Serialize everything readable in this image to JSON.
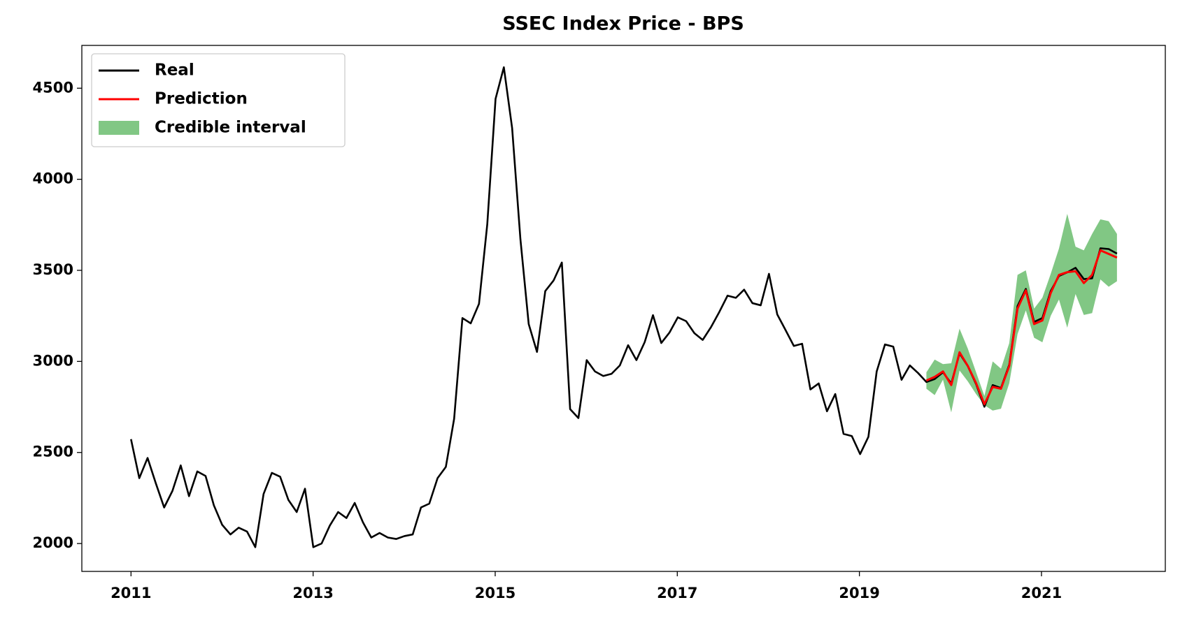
{
  "chart_data": {
    "type": "line",
    "title": "SSEC Index Price - BPS",
    "x": [
      2011,
      2011.091,
      2011.182,
      2011.273,
      2011.364,
      2011.455,
      2011.546,
      2011.637,
      2011.728,
      2011.819,
      2011.91,
      2012.001,
      2012.092,
      2012.183,
      2012.274,
      2012.365,
      2012.456,
      2012.547,
      2012.638,
      2012.729,
      2012.82,
      2012.911,
      2013.002,
      2013.093,
      2013.184,
      2013.275,
      2013.366,
      2013.457,
      2013.548,
      2013.639,
      2013.73,
      2013.821,
      2013.912,
      2014.003,
      2014.094,
      2014.185,
      2014.276,
      2014.367,
      2014.458,
      2014.549,
      2014.64,
      2014.731,
      2014.822,
      2014.913,
      2015.004,
      2015.095,
      2015.186,
      2015.277,
      2015.368,
      2015.459,
      2015.55,
      2015.641,
      2015.732,
      2015.823,
      2015.914,
      2016.005,
      2016.096,
      2016.187,
      2016.278,
      2016.369,
      2016.46,
      2016.551,
      2016.642,
      2016.733,
      2016.824,
      2016.915,
      2017.006,
      2017.097,
      2017.188,
      2017.279,
      2017.37,
      2017.461,
      2017.552,
      2017.643,
      2017.734,
      2017.825,
      2017.916,
      2018.007,
      2018.098,
      2018.189,
      2018.28,
      2018.371,
      2018.462,
      2018.553,
      2018.644,
      2018.735,
      2018.826,
      2018.917,
      2019.008,
      2019.099,
      2019.19,
      2019.281,
      2019.372,
      2019.463,
      2019.554,
      2019.645,
      2019.736,
      2019.827,
      2019.918,
      2020.009,
      2020.1,
      2020.191,
      2020.282,
      2020.373,
      2020.464,
      2020.555,
      2020.646,
      2020.737,
      2020.828,
      2020.919,
      2021.01,
      2021.101,
      2021.192,
      2021.283,
      2021.374,
      2021.465,
      2021.556,
      2021.647,
      2021.738,
      2021.829
    ],
    "series": [
      {
        "name": "Real",
        "color": "#000000",
        "values": [
          2573,
          2359,
          2470,
          2330,
          2198,
          2289,
          2429,
          2260,
          2396,
          2371,
          2210,
          2103,
          2050,
          2087,
          2066,
          1980,
          2272,
          2388,
          2367,
          2239,
          2173,
          2301,
          1980,
          2000,
          2099,
          2173,
          2140,
          2223,
          2116,
          2033,
          2058,
          2033,
          2025,
          2041,
          2050,
          2198,
          2219,
          2359,
          2421,
          2685,
          3238,
          3209,
          3316,
          3753,
          4442,
          4615,
          4281,
          3671,
          3205,
          3052,
          3386,
          3444,
          3543,
          2738,
          2689,
          3007,
          2945,
          2920,
          2932,
          2978,
          3089,
          3007,
          3106,
          3254,
          3101,
          3159,
          3242,
          3221,
          3155,
          3118,
          3188,
          3271,
          3361,
          3349,
          3394,
          3320,
          3308,
          3481,
          3258,
          3172,
          3085,
          3097,
          2846,
          2879,
          2726,
          2821,
          2602,
          2590,
          2491,
          2586,
          2945,
          3093,
          3081,
          2899,
          2978,
          2936,
          2887,
          2903,
          2940,
          2879,
          3044,
          2974,
          2875,
          2751,
          2870,
          2854,
          2982,
          3304,
          3398,
          3217,
          3238,
          3386,
          3469,
          3489,
          3514,
          3452,
          3456,
          3621,
          3617,
          3592
        ]
      },
      {
        "name": "Prediction",
        "color": "#ff0000",
        "values": [
          null,
          null,
          null,
          null,
          null,
          null,
          null,
          null,
          null,
          null,
          null,
          null,
          null,
          null,
          null,
          null,
          null,
          null,
          null,
          null,
          null,
          null,
          null,
          null,
          null,
          null,
          null,
          null,
          null,
          null,
          null,
          null,
          null,
          null,
          null,
          null,
          null,
          null,
          null,
          null,
          null,
          null,
          null,
          null,
          null,
          null,
          null,
          null,
          null,
          null,
          null,
          null,
          null,
          null,
          null,
          null,
          null,
          null,
          null,
          null,
          null,
          null,
          null,
          null,
          null,
          null,
          null,
          null,
          null,
          null,
          null,
          null,
          null,
          null,
          null,
          null,
          null,
          null,
          null,
          null,
          null,
          null,
          null,
          null,
          null,
          null,
          null,
          null,
          null,
          null,
          null,
          null,
          null,
          null,
          null,
          null,
          2895,
          2915,
          2945,
          2870,
          3050,
          2975,
          2880,
          2765,
          2860,
          2850,
          2975,
          3290,
          3390,
          3205,
          3225,
          3375,
          3475,
          3490,
          3495,
          3430,
          3475,
          3610,
          3590,
          3570
        ]
      }
    ],
    "interval": {
      "name": "Credible interval",
      "color": "#4caf50",
      "lower": [
        null,
        null,
        null,
        null,
        null,
        null,
        null,
        null,
        null,
        null,
        null,
        null,
        null,
        null,
        null,
        null,
        null,
        null,
        null,
        null,
        null,
        null,
        null,
        null,
        null,
        null,
        null,
        null,
        null,
        null,
        null,
        null,
        null,
        null,
        null,
        null,
        null,
        null,
        null,
        null,
        null,
        null,
        null,
        null,
        null,
        null,
        null,
        null,
        null,
        null,
        null,
        null,
        null,
        null,
        null,
        null,
        null,
        null,
        null,
        null,
        null,
        null,
        null,
        null,
        null,
        null,
        null,
        null,
        null,
        null,
        null,
        null,
        null,
        null,
        null,
        null,
        null,
        null,
        null,
        null,
        null,
        null,
        null,
        null,
        null,
        null,
        null,
        null,
        null,
        null,
        null,
        null,
        null,
        null,
        null,
        null,
        2850,
        2815,
        2900,
        2720,
        2950,
        2890,
        2820,
        2760,
        2730,
        2740,
        2880,
        3150,
        3280,
        3130,
        3105,
        3250,
        3340,
        3185,
        3370,
        3255,
        3265,
        3450,
        3410,
        3440
      ],
      "upper": [
        null,
        null,
        null,
        null,
        null,
        null,
        null,
        null,
        null,
        null,
        null,
        null,
        null,
        null,
        null,
        null,
        null,
        null,
        null,
        null,
        null,
        null,
        null,
        null,
        null,
        null,
        null,
        null,
        null,
        null,
        null,
        null,
        null,
        null,
        null,
        null,
        null,
        null,
        null,
        null,
        null,
        null,
        null,
        null,
        null,
        null,
        null,
        null,
        null,
        null,
        null,
        null,
        null,
        null,
        null,
        null,
        null,
        null,
        null,
        null,
        null,
        null,
        null,
        null,
        null,
        null,
        null,
        null,
        null,
        null,
        null,
        null,
        null,
        null,
        null,
        null,
        null,
        null,
        null,
        null,
        null,
        null,
        null,
        null,
        null,
        null,
        null,
        null,
        null,
        null,
        null,
        null,
        null,
        null,
        null,
        null,
        2940,
        3010,
        2985,
        2990,
        3180,
        3070,
        2940,
        2810,
        3000,
        2960,
        3100,
        3475,
        3500,
        3290,
        3350,
        3480,
        3620,
        3810,
        3630,
        3610,
        3700,
        3780,
        3770,
        3700
      ]
    },
    "xlim": [
      2010.46,
      2022.36
    ],
    "xticks": [
      2011,
      2013,
      2015,
      2017,
      2019,
      2021
    ],
    "ylim": [
      1847,
      4735
    ],
    "yticks": [
      2000,
      2500,
      3000,
      3500,
      4000,
      4500
    ],
    "legend": "upper left"
  }
}
